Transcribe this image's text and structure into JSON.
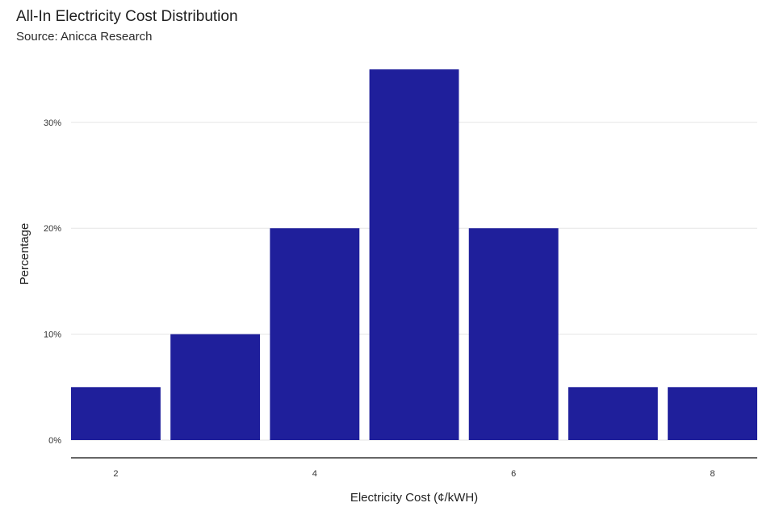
{
  "chart_data": {
    "type": "bar",
    "title": "All-In Electricity Cost Distribution",
    "subtitle": "Source: Anicca Research",
    "xlabel": "Electricity Cost (¢/kWH)",
    "ylabel": "Percentage",
    "x": [
      2,
      3,
      4,
      5,
      6,
      7,
      8
    ],
    "values": [
      5,
      10,
      20,
      35,
      20,
      5,
      5
    ],
    "value_unit": "%",
    "xlim": [
      1.55,
      8.45
    ],
    "ylim": [
      0,
      35
    ],
    "x_ticks": [
      2,
      4,
      6,
      8
    ],
    "x_tick_labels": [
      "2",
      "4",
      "6",
      "8"
    ],
    "y_ticks": [
      0,
      10,
      20,
      30
    ],
    "y_tick_labels": [
      "0%",
      "10%",
      "20%",
      "30%"
    ],
    "grid": "horizontal",
    "bar_color": "#1f1f9b",
    "grid_color": "#e6e6e6",
    "axis_color": "#333333"
  }
}
